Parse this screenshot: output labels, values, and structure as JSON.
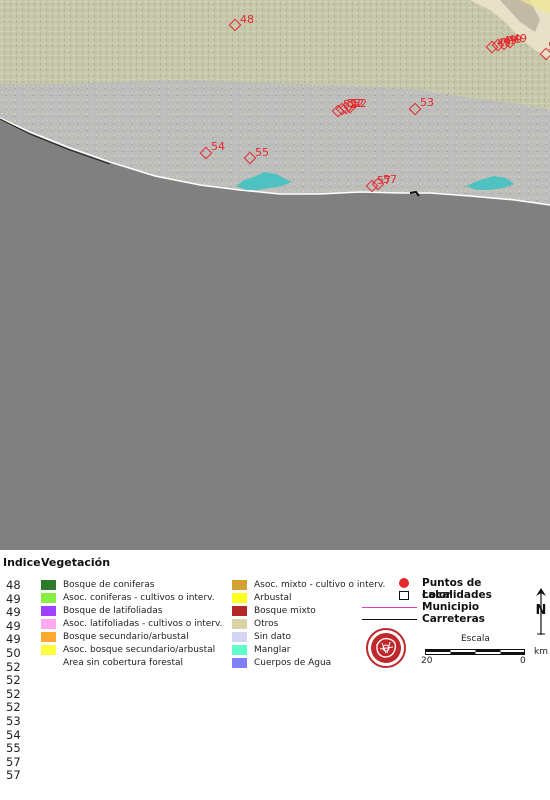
{
  "map": {
    "colors": {
      "ocean": "#808080",
      "land": "#bdbdbd",
      "mountain": "#e8e0c8",
      "lagoon": "#4fc1c0",
      "hotspot": "#e4282c",
      "beach": "#ffffff"
    },
    "hotspots": [
      {
        "label": "48"
      },
      {
        "label": "49"
      },
      {
        "label": "49"
      },
      {
        "label": "49"
      },
      {
        "label": "49"
      },
      {
        "label": "50"
      },
      {
        "label": "52"
      },
      {
        "label": "52"
      },
      {
        "label": "52"
      },
      {
        "label": "52"
      },
      {
        "label": "53"
      },
      {
        "label": "54"
      },
      {
        "label": "55"
      },
      {
        "label": "57"
      },
      {
        "label": "57"
      }
    ]
  },
  "legend": {
    "indice_header": "Indice",
    "vegetacion_header": "Vegetación",
    "indices": [
      "48",
      "49",
      "49",
      "49",
      "49",
      "50",
      "52",
      "52",
      "52",
      "52",
      "53",
      "54",
      "55",
      "57",
      "57"
    ],
    "vegetation_col1": [
      {
        "label": "Bosque de coniferas",
        "color": "#2d7a2d"
      },
      {
        "label": "Asoc. coniferas - cultivos o interv.",
        "color": "#88ee44"
      },
      {
        "label": "Bosque de latifoliadas",
        "color": "#a040ff"
      },
      {
        "label": "Asoc. latifoliadas - cultivos o interv.",
        "color": "#ffaaf0"
      },
      {
        "label": "Bosque secundario/arbustal",
        "color": "#ffa830"
      },
      {
        "label": "Asoc. bosque secundario/arbustal",
        "color": "#ffff40"
      },
      {
        "label": "Area sin cobertura forestal",
        "color": "#ffffff"
      }
    ],
    "vegetation_col2": [
      {
        "label": "Asoc. mixto - cultivo o interv.",
        "color": "#d4a030"
      },
      {
        "label": "Arbustal",
        "color": "#ffff20"
      },
      {
        "label": "Bosque mixto",
        "color": "#b02828"
      },
      {
        "label": "Otros",
        "color": "#d8d4a8"
      },
      {
        "label": "Sin dato",
        "color": "#d4d4f4"
      },
      {
        "label": "Manglar",
        "color": "#60ffcc"
      },
      {
        "label": "Cuerpos de Agua",
        "color": "#8080ff"
      }
    ],
    "symbols": {
      "hotspots": "Puntos de calor",
      "localities": "Localidades",
      "municipality": "Municipio",
      "roads": "Carreteras"
    },
    "scale": {
      "title": "Escala",
      "left": "20",
      "right": "0",
      "unit": "km"
    },
    "north": "N"
  }
}
